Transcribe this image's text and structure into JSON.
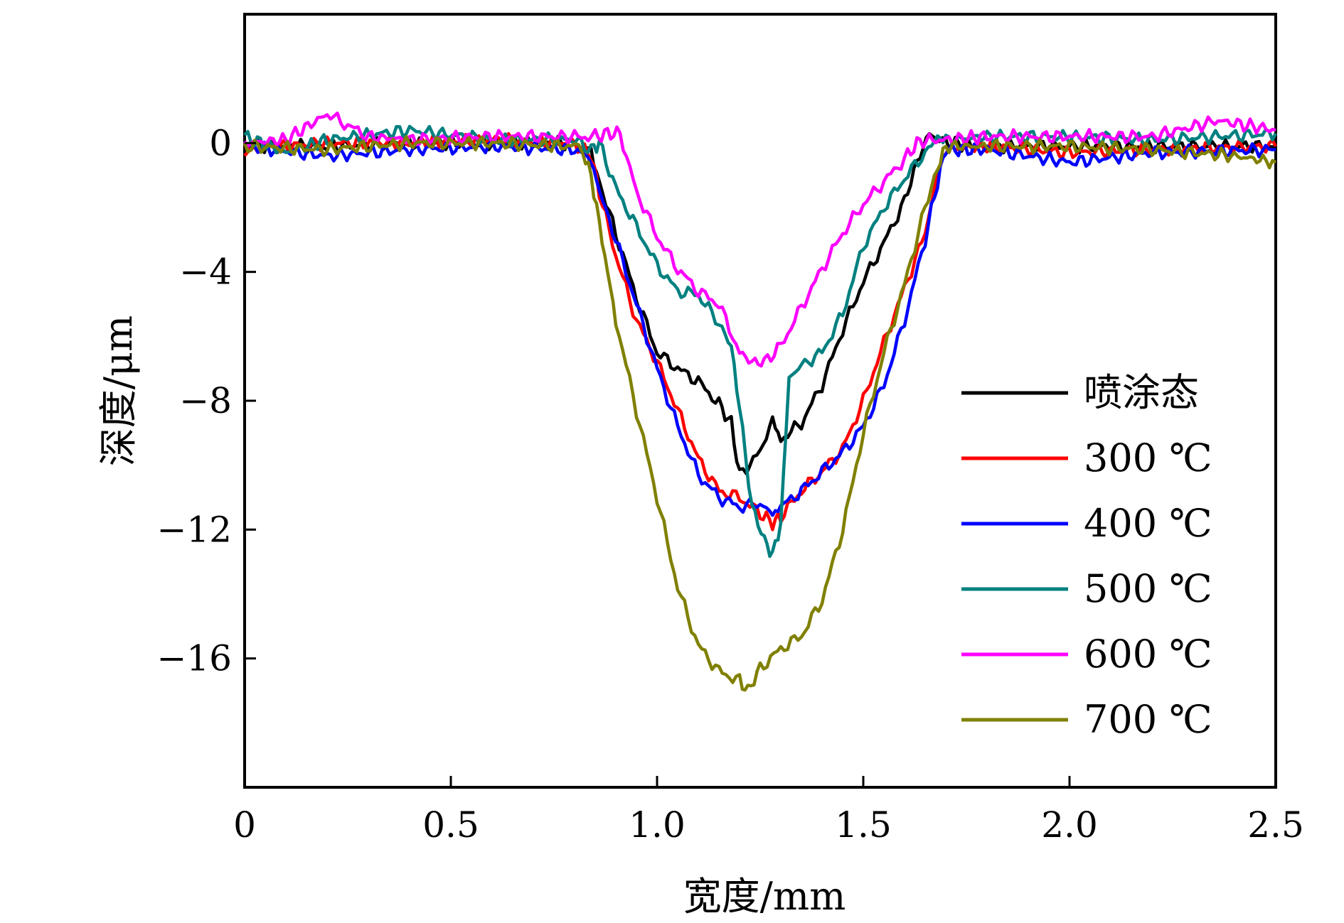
{
  "chart_data": {
    "type": "line",
    "xlabel": "宽度/mm",
    "ylabel": "深度/μm",
    "xlim": [
      0,
      2.5
    ],
    "ylim": [
      -20,
      4
    ],
    "xticks": [
      0,
      0.5,
      1.0,
      1.5,
      2.0,
      2.5
    ],
    "xtick_labels": [
      "0",
      "0.5",
      "1.0",
      "1.5",
      "2.0",
      "2.5"
    ],
    "yticks": [
      0,
      -4,
      -8,
      -12,
      -16
    ],
    "ytick_labels": [
      "0",
      "−4",
      "−8",
      "−12",
      "−16"
    ],
    "grid": false,
    "legend_position": "right",
    "series": [
      {
        "name": "喷涂态",
        "color": "#000000",
        "x": [
          0,
          0.2,
          0.4,
          0.6,
          0.8,
          0.84,
          0.86,
          0.9,
          0.95,
          1.0,
          1.05,
          1.1,
          1.15,
          1.18,
          1.2,
          1.25,
          1.28,
          1.3,
          1.35,
          1.4,
          1.45,
          1.5,
          1.55,
          1.6,
          1.63,
          1.66,
          1.7,
          1.8,
          2.0,
          2.2,
          2.5
        ],
        "y": [
          -0.1,
          -0.1,
          0.0,
          0.0,
          0.0,
          -0.3,
          -1.2,
          -2.8,
          -4.8,
          -6.5,
          -7.0,
          -7.4,
          -8.1,
          -8.7,
          -10.3,
          -9.6,
          -8.6,
          -9.2,
          -8.7,
          -7.5,
          -5.8,
          -4.3,
          -3.1,
          -1.8,
          -0.6,
          0.3,
          0.0,
          -0.1,
          -0.1,
          -0.1,
          -0.1
        ]
      },
      {
        "name": "300 ℃",
        "color": "#ff0000",
        "x": [
          0,
          0.2,
          0.4,
          0.6,
          0.8,
          0.84,
          0.86,
          0.9,
          0.95,
          1.0,
          1.05,
          1.1,
          1.15,
          1.2,
          1.25,
          1.28,
          1.3,
          1.35,
          1.4,
          1.45,
          1.5,
          1.55,
          1.6,
          1.65,
          1.68,
          1.7,
          1.8,
          2.0,
          2.2,
          2.5
        ],
        "y": [
          -0.2,
          0.0,
          0.0,
          0.1,
          0.0,
          -0.4,
          -1.5,
          -3.5,
          -5.5,
          -6.8,
          -8.3,
          -9.8,
          -10.8,
          -11.0,
          -11.5,
          -11.8,
          -11.6,
          -10.8,
          -10.2,
          -9.5,
          -8.0,
          -6.2,
          -4.5,
          -2.8,
          -1.0,
          -0.2,
          -0.1,
          -0.3,
          -0.2,
          -0.1
        ]
      },
      {
        "name": "400 ℃",
        "color": "#0000ff",
        "x": [
          0,
          0.2,
          0.4,
          0.6,
          0.8,
          0.84,
          0.86,
          0.9,
          0.95,
          1.0,
          1.05,
          1.1,
          1.15,
          1.2,
          1.25,
          1.28,
          1.3,
          1.35,
          1.4,
          1.45,
          1.5,
          1.55,
          1.6,
          1.65,
          1.68,
          1.7,
          1.8,
          2.0,
          2.2,
          2.5
        ],
        "y": [
          -0.1,
          -0.4,
          -0.2,
          -0.1,
          -0.2,
          -0.5,
          -1.5,
          -3.0,
          -5.0,
          -7.0,
          -8.8,
          -10.3,
          -11.0,
          -11.3,
          -11.2,
          -11.5,
          -11.3,
          -10.8,
          -10.2,
          -9.6,
          -8.8,
          -7.5,
          -5.5,
          -3.0,
          -1.2,
          -0.2,
          -0.2,
          -0.6,
          -0.3,
          -0.2
        ]
      },
      {
        "name": "500 ℃",
        "color": "#008080",
        "x": [
          0,
          0.1,
          0.2,
          0.4,
          0.6,
          0.8,
          0.84,
          0.86,
          0.9,
          0.95,
          1.0,
          1.05,
          1.1,
          1.15,
          1.18,
          1.2,
          1.23,
          1.26,
          1.28,
          1.3,
          1.32,
          1.35,
          1.4,
          1.45,
          1.5,
          1.55,
          1.6,
          1.65,
          1.68,
          1.7,
          1.8,
          2.0,
          2.2,
          2.5
        ],
        "y": [
          0.2,
          -0.3,
          0.1,
          0.4,
          0.1,
          0.1,
          -0.2,
          0.0,
          -1.4,
          -2.6,
          -3.8,
          -4.6,
          -4.7,
          -5.6,
          -6.3,
          -8.2,
          -11.3,
          -12.3,
          -12.8,
          -11.8,
          -7.3,
          -6.9,
          -6.5,
          -5.3,
          -3.2,
          -2.0,
          -1.1,
          -0.3,
          0.2,
          0.1,
          0.2,
          0.2,
          0.1,
          0.3
        ]
      },
      {
        "name": "600 ℃",
        "color": "#ff00ff",
        "x": [
          0,
          0.1,
          0.2,
          0.3,
          0.4,
          0.6,
          0.8,
          0.85,
          0.88,
          0.91,
          0.95,
          1.0,
          1.05,
          1.1,
          1.15,
          1.2,
          1.23,
          1.26,
          1.3,
          1.35,
          1.4,
          1.45,
          1.5,
          1.55,
          1.6,
          1.63,
          1.66,
          1.7,
          1.8,
          2.0,
          2.2,
          2.36,
          2.5
        ],
        "y": [
          0.0,
          0.1,
          0.9,
          0.2,
          0.1,
          0.2,
          0.2,
          0.2,
          0.3,
          0.3,
          -1.5,
          -2.9,
          -3.9,
          -4.6,
          -5.0,
          -6.5,
          -6.8,
          -6.8,
          -6.3,
          -5.1,
          -3.9,
          -2.8,
          -1.9,
          -1.2,
          -0.5,
          0.0,
          0.1,
          0.1,
          0.2,
          0.2,
          0.2,
          0.7,
          0.4
        ]
      },
      {
        "name": "700 ℃",
        "color": "#808000",
        "x": [
          0,
          0.2,
          0.4,
          0.6,
          0.8,
          0.82,
          0.84,
          0.86,
          0.88,
          0.9,
          0.95,
          1.0,
          1.05,
          1.1,
          1.15,
          1.2,
          1.22,
          1.25,
          1.3,
          1.35,
          1.4,
          1.45,
          1.5,
          1.55,
          1.6,
          1.65,
          1.68,
          1.7,
          1.8,
          2.0,
          2.2,
          2.4,
          2.5
        ],
        "y": [
          -0.1,
          -0.2,
          0.0,
          0.0,
          -0.1,
          -0.3,
          -1.0,
          -2.5,
          -4.0,
          -5.5,
          -8.3,
          -11.0,
          -13.8,
          -15.6,
          -16.4,
          -16.7,
          -17.0,
          -16.3,
          -15.7,
          -15.3,
          -14.2,
          -12.0,
          -9.0,
          -6.5,
          -4.4,
          -2.0,
          -0.8,
          -0.1,
          -0.1,
          -0.1,
          -0.2,
          -0.4,
          -0.6
        ]
      }
    ]
  }
}
